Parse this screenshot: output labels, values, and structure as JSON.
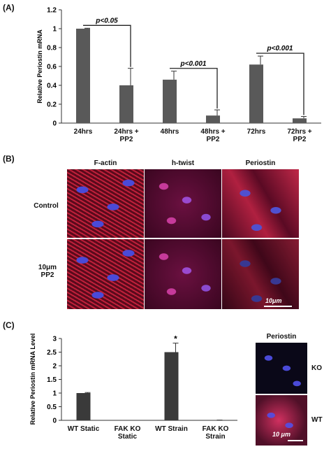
{
  "panel_labels": [
    "(A)",
    "(B)",
    "(C)"
  ],
  "chart_data": [
    {
      "type": "bar",
      "y_label": "Relative Periostin mRNA",
      "categories": [
        "24hrs",
        "24hrs + PP2",
        "48hrs",
        "48hrs + PP2",
        "72hrs",
        "72hrs + PP2"
      ],
      "values": [
        1.0,
        0.4,
        0.46,
        0.08,
        0.62,
        0.05
      ],
      "errors": [
        0.005,
        0.18,
        0.09,
        0.06,
        0.09,
        0.02
      ],
      "color": "#595959",
      "ylim": [
        0,
        1.2
      ],
      "yticks": [
        0,
        0.2,
        0.4,
        0.6,
        0.8,
        1,
        1.2
      ],
      "annotations": [
        "p<0.05",
        "p<0.001",
        "p<0.001"
      ]
    },
    {
      "type": "bar",
      "y_label": "Relative Periostin mRNA Level",
      "categories": [
        "WT Static",
        "FAK KO Static",
        "WT Strain",
        "FAK KO Strain"
      ],
      "values": [
        1.0,
        0.0,
        2.5,
        0.0
      ],
      "errors": [
        0.02,
        0.0,
        0.33,
        0.01
      ],
      "color": "#3a3a3a",
      "ylim": [
        0,
        3
      ],
      "yticks": [
        0,
        0.5,
        1,
        1.5,
        2,
        2.5,
        3
      ],
      "annotations": [
        "*"
      ]
    }
  ],
  "panel_b": {
    "columns": [
      "F-actin",
      "h-twist",
      "Periostin"
    ],
    "rows": [
      "Control",
      "10μm PP2"
    ],
    "scale": "10μm"
  },
  "panel_c_image": {
    "title": "Periostin",
    "rows": [
      "KO",
      "WT"
    ],
    "scale": "10 μm"
  }
}
